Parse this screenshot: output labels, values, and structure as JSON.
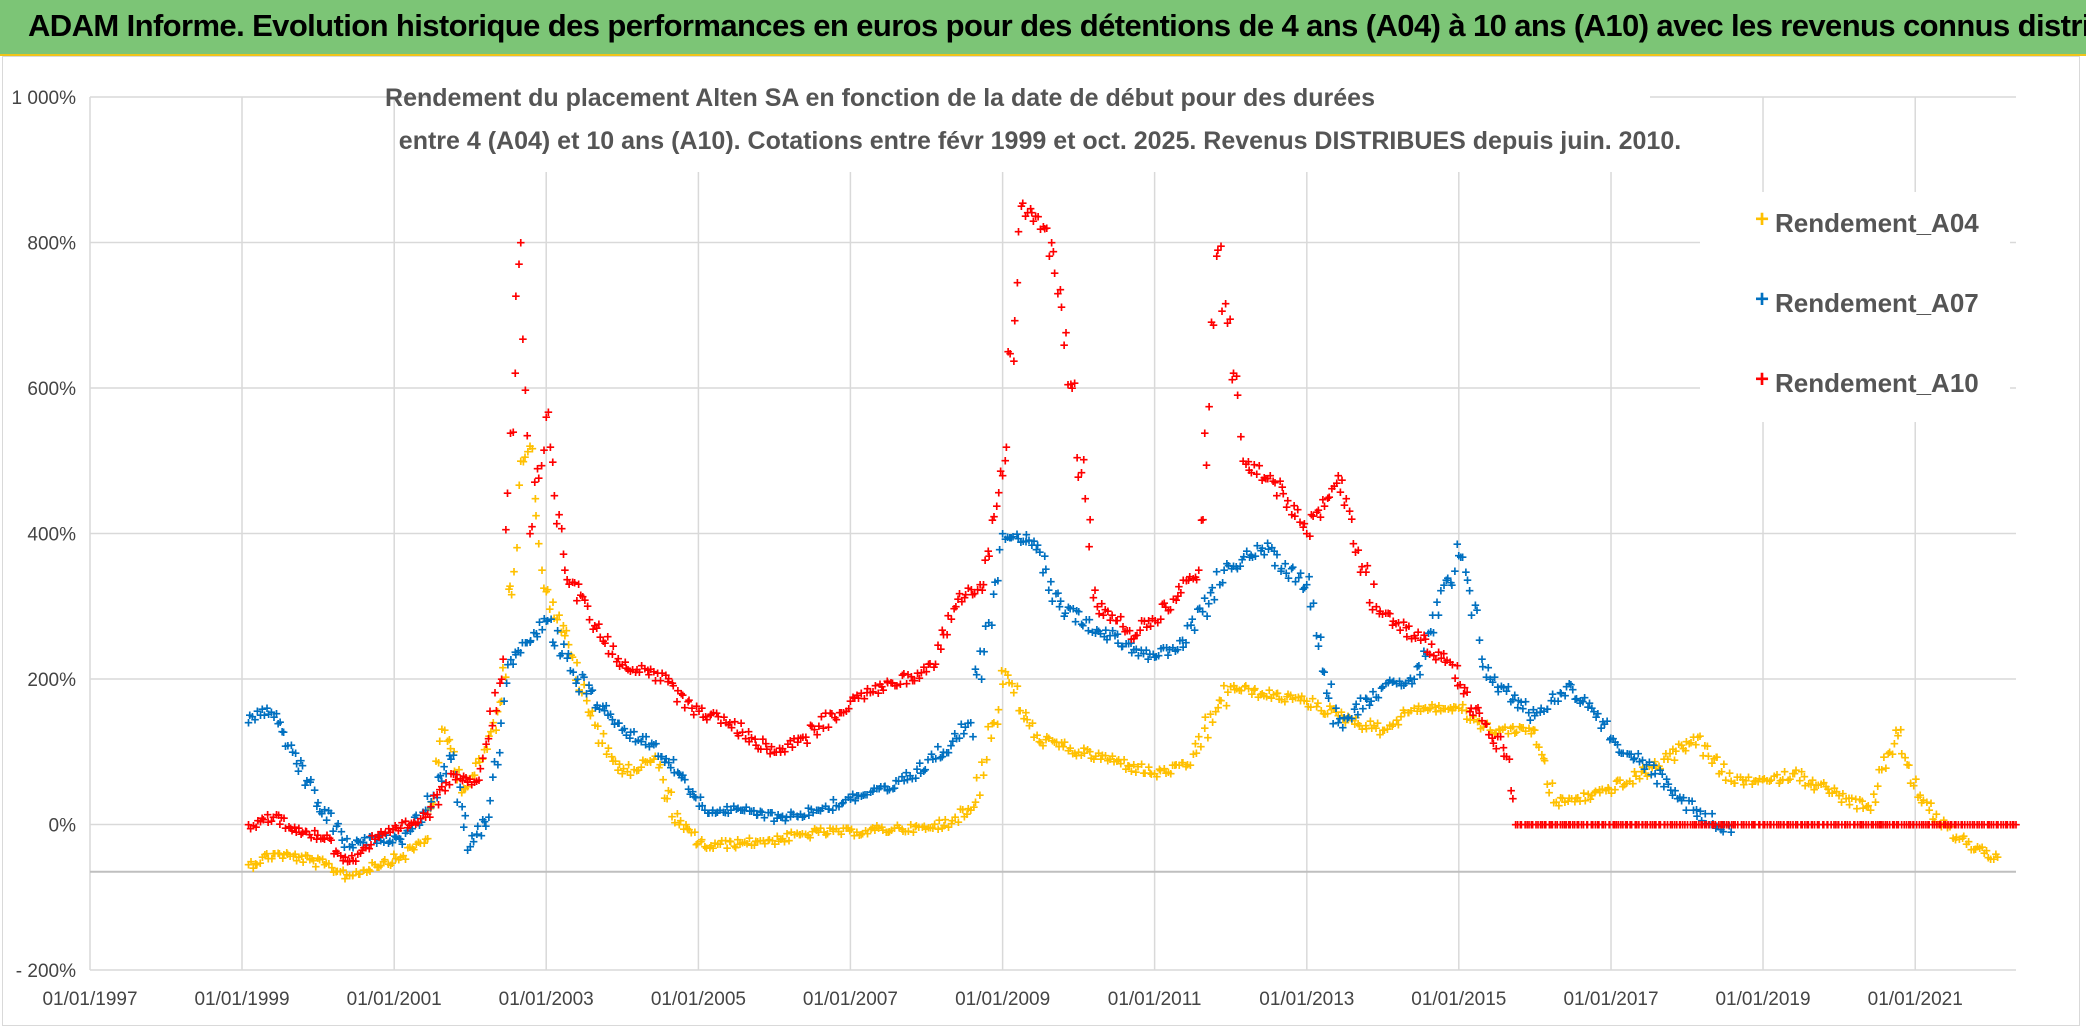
{
  "banner": {
    "title": "ADAM Informe. Evolution historique des performances en euros pour des détentions de 4 ans (A04) à 10 ans (A10) avec les revenus connus distribués"
  },
  "colors": {
    "banner_bg": "#7cc576",
    "banner_border": "#f0c419",
    "A04": "#ffc000",
    "A07": "#0070c0",
    "A10": "#ff0000",
    "grid": "#d9d9d9"
  },
  "chart_data": {
    "type": "scatter",
    "title_lines": [
      "Rendement du placement Alten SA en fonction de la date de début pour des durées",
      "entre 4 (A04) et 10 ans (A10). Cotations entre févr 1999 et oct. 2025. Revenus DISTRIBUES depuis juin. 2010."
    ],
    "x_axis": {
      "type": "date",
      "range": [
        "1997-01-01",
        "2022-04-30"
      ],
      "tick_values": [
        "1997-01-01",
        "1999-01-01",
        "2001-01-01",
        "2003-01-01",
        "2005-01-01",
        "2007-01-01",
        "2009-01-01",
        "2011-01-01",
        "2013-01-01",
        "2015-01-01",
        "2017-01-01",
        "2019-01-01",
        "2021-01-01"
      ],
      "tick_labels": [
        "01/01/1997",
        "01/01/1999",
        "01/01/2001",
        "01/01/2003",
        "01/01/2005",
        "01/01/2007",
        "01/01/2009",
        "01/01/2011",
        "01/01/2013",
        "01/01/2015",
        "01/01/2017",
        "01/01/2019",
        "01/01/2021"
      ]
    },
    "y_axis": {
      "range": [
        -200,
        1000
      ],
      "tick_values": [
        -200,
        0,
        200,
        400,
        600,
        800,
        1000
      ],
      "tick_labels": [
        "- 200%",
        "0%",
        "200%",
        "400%",
        "600%",
        "800%",
        "1 000%"
      ],
      "horizontal_reference_line": -65
    },
    "grid": true,
    "legend_position": "right",
    "series": [
      {
        "name": "Rendement_A04",
        "color": "#ffc000",
        "points": [
          [
            "1999-02-01",
            -55
          ],
          [
            "1999-06-01",
            -40
          ],
          [
            "1999-10-01",
            -45
          ],
          [
            "2000-02-01",
            -55
          ],
          [
            "2000-06-01",
            -70
          ],
          [
            "2000-10-01",
            -55
          ],
          [
            "2001-02-01",
            -45
          ],
          [
            "2001-06-01",
            -20
          ],
          [
            "2001-09-01",
            130
          ],
          [
            "2001-12-01",
            50
          ],
          [
            "2002-03-01",
            90
          ],
          [
            "2002-06-01",
            170
          ],
          [
            "2002-09-01",
            500
          ],
          [
            "2002-10-15",
            520
          ],
          [
            "2003-01-01",
            320
          ],
          [
            "2003-04-01",
            260
          ],
          [
            "2003-08-01",
            150
          ],
          [
            "2004-01-01",
            70
          ],
          [
            "2004-06-01",
            90
          ],
          [
            "2004-10-01",
            0
          ],
          [
            "2005-02-01",
            -30
          ],
          [
            "2005-08-01",
            -25
          ],
          [
            "2006-02-01",
            -20
          ],
          [
            "2006-08-01",
            -10
          ],
          [
            "2007-02-01",
            -10
          ],
          [
            "2007-08-01",
            -5
          ],
          [
            "2008-02-01",
            -5
          ],
          [
            "2008-08-01",
            20
          ],
          [
            "2009-01-15",
            210
          ],
          [
            "2009-06-01",
            120
          ],
          [
            "2010-01-01",
            100
          ],
          [
            "2010-06-01",
            90
          ],
          [
            "2011-01-01",
            70
          ],
          [
            "2011-06-01",
            80
          ],
          [
            "2012-01-01",
            190
          ],
          [
            "2012-06-01",
            180
          ],
          [
            "2013-01-01",
            170
          ],
          [
            "2013-06-01",
            150
          ],
          [
            "2014-01-01",
            130
          ],
          [
            "2014-06-01",
            160
          ],
          [
            "2015-01-01",
            160
          ],
          [
            "2015-06-01",
            130
          ],
          [
            "2016-01-01",
            130
          ],
          [
            "2016-04-01",
            30
          ],
          [
            "2016-10-01",
            40
          ],
          [
            "2017-04-01",
            60
          ],
          [
            "2017-10-01",
            90
          ],
          [
            "2018-02-01",
            120
          ],
          [
            "2018-08-01",
            60
          ],
          [
            "2019-02-01",
            60
          ],
          [
            "2019-06-01",
            70
          ],
          [
            "2020-01-01",
            40
          ],
          [
            "2020-06-01",
            20
          ],
          [
            "2020-10-01",
            130
          ],
          [
            "2021-02-01",
            30
          ],
          [
            "2021-08-01",
            -20
          ],
          [
            "2022-02-01",
            -45
          ]
        ]
      },
      {
        "name": "Rendement_A07",
        "color": "#0070c0",
        "points": [
          [
            "1999-02-01",
            140
          ],
          [
            "1999-05-01",
            160
          ],
          [
            "1999-09-01",
            100
          ],
          [
            "2000-01-01",
            30
          ],
          [
            "2000-06-01",
            -30
          ],
          [
            "2000-10-01",
            -20
          ],
          [
            "2001-02-01",
            -20
          ],
          [
            "2001-06-01",
            20
          ],
          [
            "2001-10-01",
            90
          ],
          [
            "2002-01-01",
            -30
          ],
          [
            "2002-04-01",
            10
          ],
          [
            "2002-07-01",
            220
          ],
          [
            "2002-10-01",
            250
          ],
          [
            "2003-01-01",
            280
          ],
          [
            "2003-06-01",
            200
          ],
          [
            "2004-01-01",
            130
          ],
          [
            "2004-06-01",
            110
          ],
          [
            "2004-10-01",
            70
          ],
          [
            "2005-02-01",
            20
          ],
          [
            "2005-08-01",
            20
          ],
          [
            "2006-02-01",
            10
          ],
          [
            "2006-08-01",
            20
          ],
          [
            "2007-02-01",
            40
          ],
          [
            "2007-08-01",
            50
          ],
          [
            "2008-02-01",
            90
          ],
          [
            "2008-08-01",
            140
          ],
          [
            "2009-01-01",
            400
          ],
          [
            "2009-06-01",
            390
          ],
          [
            "2009-10-01",
            300
          ],
          [
            "2010-06-01",
            260
          ],
          [
            "2011-01-01",
            230
          ],
          [
            "2011-06-01",
            250
          ],
          [
            "2011-12-01",
            350
          ],
          [
            "2012-06-01",
            380
          ],
          [
            "2013-01-01",
            330
          ],
          [
            "2013-06-01",
            140
          ],
          [
            "2014-01-01",
            190
          ],
          [
            "2014-06-01",
            200
          ],
          [
            "2015-01-01",
            370
          ],
          [
            "2015-06-01",
            200
          ],
          [
            "2016-01-01",
            150
          ],
          [
            "2016-06-01",
            190
          ],
          [
            "2016-10-01",
            160
          ],
          [
            "2017-02-01",
            110
          ],
          [
            "2017-08-01",
            70
          ],
          [
            "2018-02-01",
            20
          ],
          [
            "2018-08-01",
            -10
          ]
        ]
      },
      {
        "name": "Rendement_A10",
        "color": "#ff0000",
        "points": [
          [
            "1999-02-01",
            0
          ],
          [
            "1999-06-01",
            10
          ],
          [
            "1999-10-01",
            -5
          ],
          [
            "2000-02-01",
            -20
          ],
          [
            "2000-06-01",
            -50
          ],
          [
            "2000-10-01",
            -20
          ],
          [
            "2001-02-01",
            -5
          ],
          [
            "2001-06-01",
            10
          ],
          [
            "2001-10-01",
            70
          ],
          [
            "2002-02-01",
            60
          ],
          [
            "2002-06-01",
            200
          ],
          [
            "2002-09-01",
            800
          ],
          [
            "2002-10-15",
            400
          ],
          [
            "2003-01-01",
            560
          ],
          [
            "2003-04-01",
            350
          ],
          [
            "2003-09-01",
            270
          ],
          [
            "2004-01-01",
            220
          ],
          [
            "2004-06-01",
            210
          ],
          [
            "2004-12-01",
            160
          ],
          [
            "2005-06-01",
            140
          ],
          [
            "2006-01-01",
            100
          ],
          [
            "2006-06-01",
            120
          ],
          [
            "2007-01-01",
            170
          ],
          [
            "2007-06-01",
            190
          ],
          [
            "2008-01-01",
            210
          ],
          [
            "2008-06-01",
            310
          ],
          [
            "2008-10-01",
            330
          ],
          [
            "2009-01-01",
            480
          ],
          [
            "2009-04-01",
            850
          ],
          [
            "2009-08-01",
            820
          ],
          [
            "2009-12-01",
            600
          ],
          [
            "2010-04-01",
            300
          ],
          [
            "2010-10-01",
            260
          ],
          [
            "2011-04-01",
            310
          ],
          [
            "2011-08-01",
            350
          ],
          [
            "2011-11-01",
            790
          ],
          [
            "2012-03-01",
            500
          ],
          [
            "2012-08-01",
            470
          ],
          [
            "2013-01-01",
            400
          ],
          [
            "2013-06-01",
            480
          ],
          [
            "2013-12-01",
            300
          ],
          [
            "2014-06-01",
            260
          ],
          [
            "2014-12-01",
            220
          ],
          [
            "2015-03-01",
            160
          ],
          [
            "2015-09-01",
            90
          ],
          [
            "2015-10-01",
            0
          ],
          [
            "2022-04-30",
            0
          ]
        ]
      }
    ]
  }
}
